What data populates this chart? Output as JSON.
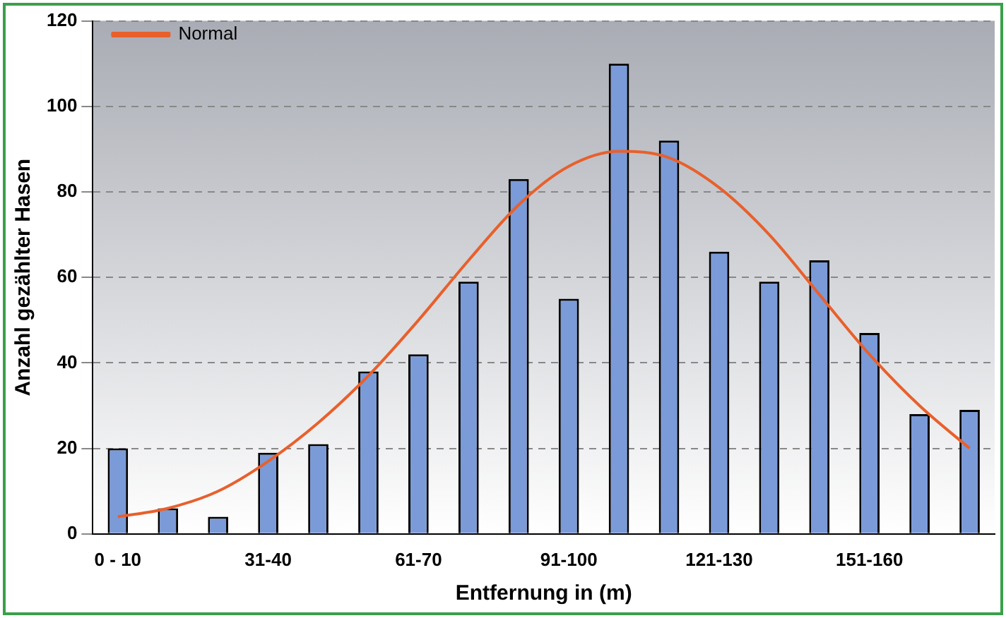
{
  "chart_data": {
    "type": "bar",
    "xlabel": "Entfernung in (m)",
    "ylabel": "Anzahl gezählter Hasen",
    "categories": [
      "0 - 10",
      null,
      null,
      "31-40",
      null,
      null,
      "61-70",
      null,
      null,
      "91-100",
      null,
      null,
      "121-130",
      null,
      null,
      "151-160",
      null,
      null
    ],
    "series": [
      {
        "color": "#7b9ad8",
        "values": [
          20,
          6,
          4,
          19,
          21,
          38,
          42,
          59,
          83,
          55,
          110,
          92,
          66,
          59,
          64,
          47,
          28,
          29
        ]
      },
      {
        "type": "line",
        "name": "Normal",
        "color": "#e8602c",
        "values": [
          4,
          6,
          10,
          17,
          26,
          37,
          50,
          64,
          77,
          86,
          89.5,
          88,
          81,
          70,
          56,
          42,
          30,
          20
        ]
      }
    ],
    "ylim": [
      0,
      120
    ],
    "yticks": [
      0,
      20,
      40,
      60,
      80,
      100,
      120
    ],
    "grid": "y",
    "legend": "top left",
    "marker": "none",
    "line_style": "solid"
  }
}
